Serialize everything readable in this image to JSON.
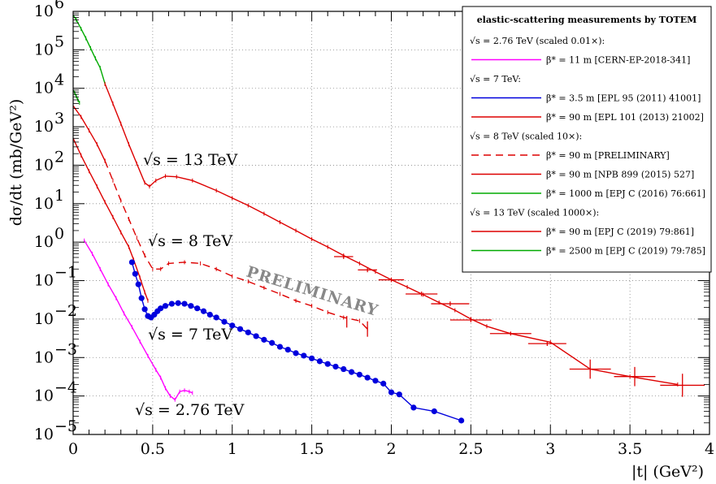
{
  "chart_data": {
    "type": "scatter",
    "title": "",
    "xlabel": "|t|   (GeV²)",
    "ylabel": "dσ/dt   (mb/GeV²)",
    "xlim": [
      0,
      4
    ],
    "ylim_log10": [
      -5,
      6
    ],
    "yscale": "log",
    "grid": true,
    "x_ticks": [
      "0",
      "0.5",
      "1",
      "1.5",
      "2",
      "2.5",
      "3",
      "3.5",
      "4"
    ],
    "y_ticks": [
      {
        "base": "10",
        "exp": "6"
      },
      {
        "base": "10",
        "exp": "5"
      },
      {
        "base": "10",
        "exp": "4"
      },
      {
        "base": "10",
        "exp": "3"
      },
      {
        "base": "10",
        "exp": "2"
      },
      {
        "base": "10",
        "exp": "1"
      },
      {
        "base": "10",
        "exp": "0"
      },
      {
        "base": "10",
        "exp": "−1"
      },
      {
        "base": "10",
        "exp": "−2"
      },
      {
        "base": "10",
        "exp": "−3"
      },
      {
        "base": "10",
        "exp": "−4"
      },
      {
        "base": "10",
        "exp": "−5"
      }
    ],
    "energy_labels": {
      "e13": "√s = 13 TeV",
      "e8": "√s = 8 TeV",
      "e7": "√s = 7 TeV",
      "e276": "√s = 2.76 TeV"
    },
    "watermark": "PRELIMINARY",
    "legend": {
      "title": "elastic-scattering measurements by TOTEM",
      "placement": "top-right",
      "rows": [
        {
          "kind": "header",
          "text": "√s = 2.76 TeV (scaled 0.01×):"
        },
        {
          "kind": "entry",
          "color": "#ff00ff",
          "dash": "solid",
          "text": "β* = 11 m [CERN-EP-2018-341]"
        },
        {
          "kind": "header",
          "text": "√s = 7 TeV:"
        },
        {
          "kind": "entry",
          "color": "#0000dd",
          "dash": "solid",
          "text": "β* = 3.5 m [EPL 95 (2011) 41001]"
        },
        {
          "kind": "entry",
          "color": "#dd0000",
          "dash": "solid",
          "text": "β* = 90 m [EPL 101 (2013) 21002]"
        },
        {
          "kind": "header",
          "text": "√s = 8 TeV (scaled 10×):"
        },
        {
          "kind": "entry",
          "color": "#dd0000",
          "dash": "dashed",
          "text": "β* = 90 m [PRELIMINARY]"
        },
        {
          "kind": "entry",
          "color": "#dd0000",
          "dash": "solid",
          "text": "β* = 90 m [NPB 899 (2015) 527]"
        },
        {
          "kind": "entry",
          "color": "#00aa00",
          "dash": "solid",
          "text": "β* = 1000 m [EPJ C (2016) 76:661]"
        },
        {
          "kind": "header",
          "text": "√s = 13 TeV (scaled 1000×):"
        },
        {
          "kind": "entry",
          "color": "#dd0000",
          "dash": "solid",
          "text": "β* = 90 m [EPJ C (2019) 79:861]"
        },
        {
          "kind": "entry",
          "color": "#00aa00",
          "dash": "solid",
          "text": "β* = 2500 m [EPJ C (2019) 79:785]"
        }
      ]
    },
    "series": [
      {
        "color": "#00aa00",
        "style": "solid",
        "x": [
          0.0,
          0.02,
          0.05,
          0.08,
          0.11,
          0.14,
          0.17,
          0.2
        ],
        "y": [
          800000.0,
          600000.0,
          350000.0,
          200000.0,
          110000.0,
          60000.0,
          34000.0,
          13000.0
        ]
      },
      {
        "color": "#dd0000",
        "style": "solid",
        "x": [
          0.2,
          0.25,
          0.3,
          0.35,
          0.4,
          0.45,
          0.48,
          0.52,
          0.58,
          0.65,
          0.75,
          0.9,
          1.0,
          1.1,
          1.2,
          1.3,
          1.4,
          1.5,
          1.6,
          1.7,
          1.8,
          1.9,
          2.0,
          2.1,
          2.2,
          2.3,
          2.4,
          2.5,
          2.6,
          2.75,
          3.0,
          3.25,
          3.5,
          3.8
        ],
        "y": [
          13000.0,
          4000.0,
          1200.0,
          350,
          110,
          35,
          28,
          40,
          52,
          50,
          40,
          22,
          14,
          9,
          5.5,
          3.3,
          2.0,
          1.2,
          0.75,
          0.45,
          0.28,
          0.17,
          0.105,
          0.068,
          0.043,
          0.027,
          0.017,
          0.01,
          0.0065,
          0.0042,
          0.0025,
          0.0005,
          0.00032,
          0.0002
        ]
      },
      {
        "color": "#00aa00",
        "style": "solid",
        "x": [
          0.0,
          0.01,
          0.02,
          0.03,
          0.04
        ],
        "y": [
          9000,
          7500,
          6200,
          5000,
          4200
        ]
      },
      {
        "color": "#dd0000",
        "style": "solid",
        "x": [
          0.0,
          0.05,
          0.1,
          0.15,
          0.2
        ],
        "y": [
          3500,
          1800,
          800,
          350,
          130
        ]
      },
      {
        "color": "#dd0000",
        "style": "dashed",
        "x": [
          0.2,
          0.25,
          0.3,
          0.35,
          0.4,
          0.45,
          0.5,
          0.55,
          0.6,
          0.7,
          0.8,
          0.9,
          1.0,
          1.1,
          1.2,
          1.3,
          1.4,
          1.5,
          1.6,
          1.7,
          1.8,
          1.85
        ],
        "y": [
          130,
          40,
          12,
          4.0,
          1.3,
          0.45,
          0.2,
          0.2,
          0.28,
          0.3,
          0.28,
          0.2,
          0.13,
          0.095,
          0.065,
          0.045,
          0.03,
          0.022,
          0.015,
          0.011,
          0.009,
          0.0055
        ]
      },
      {
        "color": "#dd0000",
        "style": "solid",
        "x": [
          0.0,
          0.05,
          0.1,
          0.15,
          0.2,
          0.25,
          0.3,
          0.35,
          0.38,
          0.42,
          0.45,
          0.47
        ],
        "y": [
          500,
          180,
          70,
          28,
          11,
          4.5,
          1.8,
          0.75,
          0.35,
          0.12,
          0.05,
          0.03
        ]
      },
      {
        "color": "#0000dd",
        "style": "solid",
        "markers": true,
        "x": [
          0.37,
          0.39,
          0.41,
          0.43,
          0.45,
          0.47,
          0.49,
          0.51,
          0.53,
          0.55,
          0.58,
          0.62,
          0.66,
          0.7,
          0.74,
          0.78,
          0.82,
          0.86,
          0.9,
          0.95,
          1.0,
          1.05,
          1.1,
          1.15,
          1.2,
          1.25,
          1.3,
          1.35,
          1.4,
          1.45,
          1.5,
          1.55,
          1.6,
          1.65,
          1.7,
          1.75,
          1.8,
          1.85,
          1.9,
          1.95,
          2.0,
          2.05,
          2.14,
          2.27,
          2.44
        ],
        "y": [
          0.3,
          0.15,
          0.08,
          0.035,
          0.018,
          0.012,
          0.011,
          0.013,
          0.016,
          0.019,
          0.022,
          0.025,
          0.026,
          0.025,
          0.022,
          0.019,
          0.016,
          0.013,
          0.011,
          0.0085,
          0.0068,
          0.0055,
          0.0045,
          0.0036,
          0.0029,
          0.0024,
          0.0019,
          0.0016,
          0.0013,
          0.00112,
          0.00095,
          0.0008,
          0.00068,
          0.00058,
          0.0005,
          0.00042,
          0.00036,
          0.0003,
          0.00025,
          0.00021,
          0.000125,
          0.00011,
          5e-05,
          4e-05,
          2.3e-05
        ]
      },
      {
        "color": "#ff00ff",
        "style": "solid",
        "x": [
          0.07,
          0.12,
          0.17,
          0.22,
          0.27,
          0.32,
          0.37,
          0.42,
          0.47,
          0.52,
          0.55,
          0.58,
          0.61,
          0.64,
          0.67,
          0.7,
          0.73,
          0.75
        ],
        "y": [
          1.1,
          0.5,
          0.2,
          0.08,
          0.035,
          0.014,
          0.0062,
          0.0026,
          0.0011,
          0.00048,
          0.0003,
          0.00016,
          0.0001,
          8e-05,
          0.00013,
          0.00014,
          0.00013,
          0.00012
        ]
      }
    ],
    "error_bars": [
      {
        "color": "#dd0000",
        "points": [
          {
            "x": 2.37,
            "y": 0.025,
            "xerr": 0.12,
            "yerr_log": 0
          },
          {
            "x": 2.5,
            "y": 0.0095,
            "xerr": 0.13,
            "yerr_log": 0
          },
          {
            "x": 2.75,
            "y": 0.0042,
            "xerr": 0.13,
            "yerr_log": 0.04
          },
          {
            "x": 2.98,
            "y": 0.0023,
            "xerr": 0.12,
            "yerr_log": 0.06
          },
          {
            "x": 3.25,
            "y": 0.0005,
            "xerr": 0.13,
            "yerr_log": 0.25
          },
          {
            "x": 3.53,
            "y": 0.00032,
            "xerr": 0.13,
            "yerr_log": 0.25
          },
          {
            "x": 3.83,
            "y": 0.00019,
            "xerr": 0.14,
            "yerr_log": 0.3
          },
          {
            "x": 2.19,
            "y": 0.045,
            "xerr": 0.1,
            "yerr_log": 0
          },
          {
            "x": 2.0,
            "y": 0.105,
            "xerr": 0.08,
            "yerr_log": 0
          },
          {
            "x": 1.85,
            "y": 0.19,
            "xerr": 0.06,
            "yerr_log": 0
          },
          {
            "x": 1.7,
            "y": 0.42,
            "xerr": 0.06,
            "yerr_log": 0
          },
          {
            "x": 1.72,
            "y": 0.0085,
            "xerr": 0.0,
            "yerr_log": 0.15
          },
          {
            "x": 1.85,
            "y": 0.0055,
            "xerr": 0.0,
            "yerr_log": 0.2
          }
        ]
      }
    ]
  }
}
